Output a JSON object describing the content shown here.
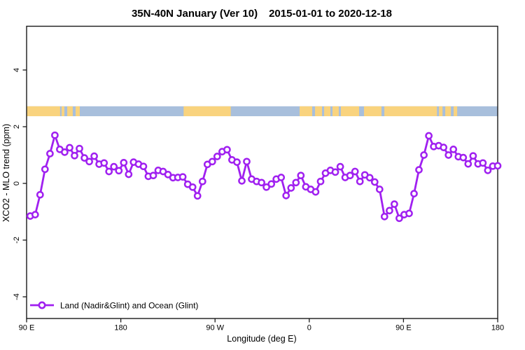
{
  "header": {
    "title_left": "35N-40N January (Ver 10)",
    "title_right": "2015-01-01 to 2020-12-18"
  },
  "chart_data": {
    "type": "line",
    "title": "35N-40N January (Ver 10)  2015-01-01 to 2020-12-18",
    "xlabel": "Longitude (deg E)",
    "ylabel": "XCO2 - MLO trend (ppm)",
    "ylim": [
      -4.8,
      5.5
    ],
    "y_ticks": [
      -4,
      -2,
      0,
      2,
      4
    ],
    "y_tick_labels": [
      "-4",
      "-2",
      "0",
      "2",
      "4"
    ],
    "x_axis": {
      "span_deg": [
        0,
        450
      ],
      "ticks_deg": [
        0,
        90,
        180,
        270,
        360,
        450
      ],
      "tick_labels": [
        "90 E",
        "180",
        "90 W",
        "0",
        "90 E",
        "180"
      ]
    },
    "grid": "off",
    "legend": {
      "position": "bottom-left",
      "label": "Land (Nadir&Glint) and Ocean (Glint)"
    },
    "series": [
      {
        "name": "Land (Nadir&Glint) and Ocean (Glint)",
        "color": "#A020F0",
        "marker": "open-circle",
        "start_deg": 3.5,
        "end_deg": 450,
        "values": [
          -1.15,
          -1.1,
          -0.4,
          0.5,
          1.05,
          1.7,
          1.2,
          1.1,
          1.26,
          0.98,
          1.23,
          0.9,
          0.77,
          0.96,
          0.68,
          0.72,
          0.42,
          0.59,
          0.45,
          0.73,
          0.32,
          0.75,
          0.68,
          0.6,
          0.25,
          0.28,
          0.46,
          0.42,
          0.31,
          0.2,
          0.21,
          0.23,
          -0.03,
          -0.13,
          -0.44,
          0.07,
          0.67,
          0.77,
          0.95,
          1.12,
          1.19,
          0.83,
          0.75,
          0.09,
          0.77,
          0.15,
          0.07,
          0.03,
          -0.13,
          -0.02,
          0.15,
          0.21,
          -0.43,
          -0.16,
          0.03,
          0.28,
          -0.12,
          -0.21,
          -0.3,
          0.07,
          0.36,
          0.46,
          0.4,
          0.59,
          0.21,
          0.28,
          0.42,
          0.07,
          0.3,
          0.2,
          0.05,
          -0.21,
          -1.17,
          -0.96,
          -0.73,
          -1.23,
          -1.1,
          -1.06,
          -0.36,
          0.48,
          1.0,
          1.68,
          1.3,
          1.33,
          1.27,
          1.0,
          1.2,
          0.94,
          0.91,
          0.69,
          0.97,
          0.69,
          0.72,
          0.46,
          0.61,
          0.62
        ]
      }
    ],
    "land_ocean_band": {
      "top_value": 2.72,
      "bottom_value": 2.37,
      "ocean_color": "#A8BFDC",
      "land_color": "#F9D37E",
      "base": "ocean",
      "land_segments_deg": [
        [
          0,
          32
        ],
        [
          33.4,
          36.1
        ],
        [
          38.8,
          44.1
        ],
        [
          46.8,
          50.8
        ],
        [
          150,
          195
        ],
        [
          260.8,
          272.8
        ],
        [
          275.5,
          282.2
        ],
        [
          284.2,
          290.2
        ],
        [
          292.2,
          298.2
        ],
        [
          300.2,
          317.6
        ],
        [
          322.3,
          339.0
        ],
        [
          341.7,
          392
        ],
        [
          393.9,
          397.3
        ],
        [
          399.9,
          405.3
        ],
        [
          407.9,
          411.3
        ]
      ]
    }
  }
}
